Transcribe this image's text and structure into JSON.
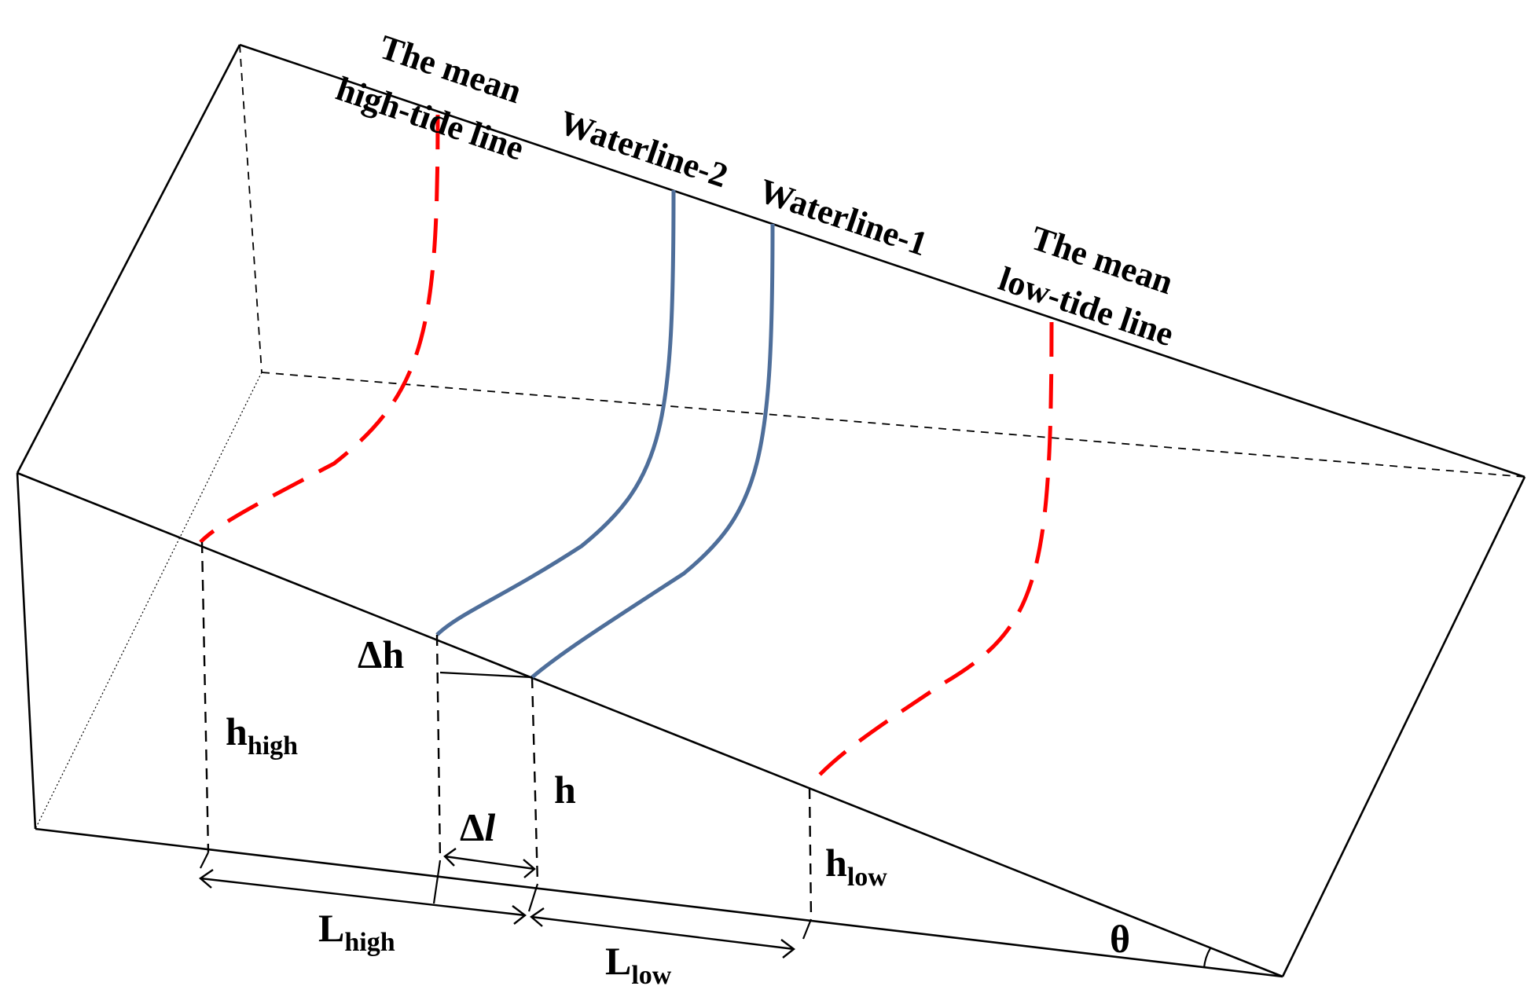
{
  "labels": {
    "high_tide_line": [
      "The mean",
      "high-tide line"
    ],
    "waterline_2": "Waterline-2",
    "waterline_1": "Waterline-1",
    "low_tide_line": [
      "The mean",
      "low-tide line"
    ],
    "delta_h": "Δh",
    "h_high_main": "h",
    "h_high_sub": "high",
    "h": "h",
    "delta_l_main": "Δ",
    "delta_l_italic": "l",
    "h_low_main": "h",
    "h_low_sub": "low",
    "l_high_main": "L",
    "l_high_sub": "high",
    "l_low_main": "L",
    "l_low_sub": "low",
    "theta": "θ"
  },
  "colors": {
    "tide_lines": "#ff0000",
    "waterlines": "#4e6e9a",
    "edges": "#000000"
  }
}
